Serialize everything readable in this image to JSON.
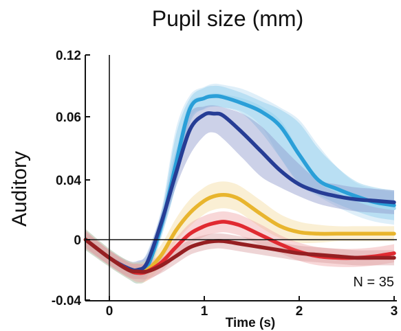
{
  "chart_data": {
    "type": "line",
    "title": "Pupil size (mm)",
    "ylabel": "Auditory",
    "xlabel": "Time (s)",
    "annotation": "N = 35",
    "xlim": [
      -0.25,
      3.0
    ],
    "ylim": [
      -0.04,
      0.12
    ],
    "yticks": [
      -0.04,
      0,
      0.04,
      0.06,
      0.12
    ],
    "ytick_labels": [
      "-0.04",
      "0",
      "0.04",
      "0.06",
      "0.12"
    ],
    "xticks": [
      0,
      1,
      2,
      3
    ],
    "xtick_labels": [
      "0",
      "1",
      "2",
      "3"
    ],
    "vline_x": 0,
    "hline_y": 0,
    "grid": false,
    "legend": "none",
    "series": [
      {
        "color": "#a6d8f0",
        "band_color": "#b8dcf2",
        "x": [
          -0.25,
          0.0,
          0.2,
          0.3,
          0.4,
          0.55,
          0.7,
          0.85,
          1.0,
          1.1,
          1.2,
          1.4,
          1.6,
          1.8,
          2.0,
          2.2,
          2.4,
          2.6,
          2.8,
          3.0
        ],
        "y": [
          0.0,
          -0.012,
          -0.02,
          -0.022,
          -0.016,
          0.012,
          0.046,
          0.07,
          0.078,
          0.081,
          0.08,
          0.076,
          0.068,
          0.058,
          0.048,
          0.04,
          0.033,
          0.027,
          0.023,
          0.021
        ],
        "band": [
          0.007,
          0.006,
          0.006,
          0.007,
          0.008,
          0.009,
          0.01,
          0.011,
          0.011,
          0.011,
          0.011,
          0.011,
          0.011,
          0.011,
          0.011,
          0.011,
          0.011,
          0.011,
          0.011,
          0.011
        ]
      },
      {
        "color": "#2a9fd8",
        "band_color": "#8ccbec",
        "x": [
          -0.25,
          0.0,
          0.2,
          0.3,
          0.4,
          0.55,
          0.7,
          0.85,
          1.0,
          1.1,
          1.2,
          1.4,
          1.6,
          1.8,
          2.0,
          2.2,
          2.4,
          2.6,
          2.8,
          3.0
        ],
        "y": [
          0.0,
          -0.012,
          -0.02,
          -0.022,
          -0.018,
          0.01,
          0.045,
          0.068,
          0.078,
          0.08,
          0.079,
          0.073,
          0.065,
          0.057,
          0.048,
          0.04,
          0.034,
          0.029,
          0.025,
          0.023
        ],
        "band": [
          0.007,
          0.006,
          0.006,
          0.007,
          0.007,
          0.008,
          0.009,
          0.01,
          0.01,
          0.01,
          0.01,
          0.01,
          0.01,
          0.01,
          0.01,
          0.01,
          0.01,
          0.01,
          0.01,
          0.01
        ]
      },
      {
        "color": "#263d95",
        "band_color": "#8e98cc",
        "x": [
          -0.25,
          0.0,
          0.2,
          0.3,
          0.4,
          0.55,
          0.7,
          0.85,
          1.0,
          1.1,
          1.2,
          1.4,
          1.6,
          1.8,
          2.0,
          2.2,
          2.4,
          2.6,
          2.8,
          3.0
        ],
        "y": [
          0.0,
          -0.012,
          -0.019,
          -0.02,
          -0.015,
          0.012,
          0.042,
          0.056,
          0.062,
          0.063,
          0.061,
          0.055,
          0.049,
          0.043,
          0.037,
          0.032,
          0.029,
          0.027,
          0.026,
          0.025
        ],
        "band": [
          0.006,
          0.005,
          0.005,
          0.006,
          0.006,
          0.007,
          0.007,
          0.008,
          0.008,
          0.008,
          0.008,
          0.008,
          0.008,
          0.008,
          0.008,
          0.008,
          0.008,
          0.008,
          0.008,
          0.008
        ]
      },
      {
        "color": "#e8b52e",
        "band_color": "#f4dca0",
        "x": [
          -0.25,
          0.0,
          0.2,
          0.3,
          0.4,
          0.55,
          0.7,
          0.85,
          1.0,
          1.1,
          1.2,
          1.3,
          1.4,
          1.6,
          1.8,
          2.0,
          2.2,
          2.4,
          2.6,
          2.8,
          3.0
        ],
        "y": [
          0.0,
          -0.012,
          -0.02,
          -0.022,
          -0.02,
          -0.01,
          0.006,
          0.018,
          0.026,
          0.029,
          0.03,
          0.029,
          0.026,
          0.017,
          0.009,
          0.005,
          0.004,
          0.004,
          0.004,
          0.004,
          0.004
        ],
        "band": [
          0.007,
          0.006,
          0.006,
          0.007,
          0.007,
          0.007,
          0.008,
          0.009,
          0.009,
          0.009,
          0.009,
          0.009,
          0.009,
          0.009,
          0.008,
          0.007,
          0.006,
          0.005,
          0.005,
          0.005,
          0.005
        ]
      },
      {
        "color": "#e02a31",
        "band_color": "#f0a6a8",
        "x": [
          -0.25,
          0.0,
          0.2,
          0.3,
          0.4,
          0.55,
          0.7,
          0.85,
          1.0,
          1.1,
          1.2,
          1.3,
          1.4,
          1.6,
          1.8,
          2.0,
          2.2,
          2.4,
          2.6,
          2.8,
          3.0
        ],
        "y": [
          0.0,
          -0.012,
          -0.02,
          -0.022,
          -0.021,
          -0.015,
          -0.005,
          0.004,
          0.009,
          0.011,
          0.012,
          0.011,
          0.009,
          0.003,
          -0.003,
          -0.008,
          -0.011,
          -0.012,
          -0.012,
          -0.011,
          -0.009
        ],
        "band": [
          0.006,
          0.005,
          0.005,
          0.006,
          0.006,
          0.006,
          0.006,
          0.007,
          0.007,
          0.007,
          0.007,
          0.007,
          0.007,
          0.007,
          0.006,
          0.006,
          0.006,
          0.006,
          0.006,
          0.006,
          0.006
        ]
      },
      {
        "color": "#951f22",
        "band_color": "#d9a0a2",
        "x": [
          -0.25,
          0.0,
          0.2,
          0.3,
          0.4,
          0.55,
          0.7,
          0.85,
          1.0,
          1.1,
          1.2,
          1.4,
          1.6,
          1.8,
          2.0,
          2.2,
          2.4,
          2.6,
          2.8,
          3.0
        ],
        "y": [
          0.0,
          -0.012,
          -0.02,
          -0.021,
          -0.021,
          -0.017,
          -0.011,
          -0.005,
          -0.002,
          -0.001,
          -0.001,
          -0.003,
          -0.005,
          -0.007,
          -0.009,
          -0.01,
          -0.011,
          -0.012,
          -0.012,
          -0.012
        ],
        "band": [
          0.005,
          0.005,
          0.005,
          0.005,
          0.005,
          0.005,
          0.005,
          0.005,
          0.005,
          0.005,
          0.005,
          0.005,
          0.005,
          0.005,
          0.005,
          0.005,
          0.005,
          0.005,
          0.005,
          0.005
        ]
      }
    ]
  }
}
